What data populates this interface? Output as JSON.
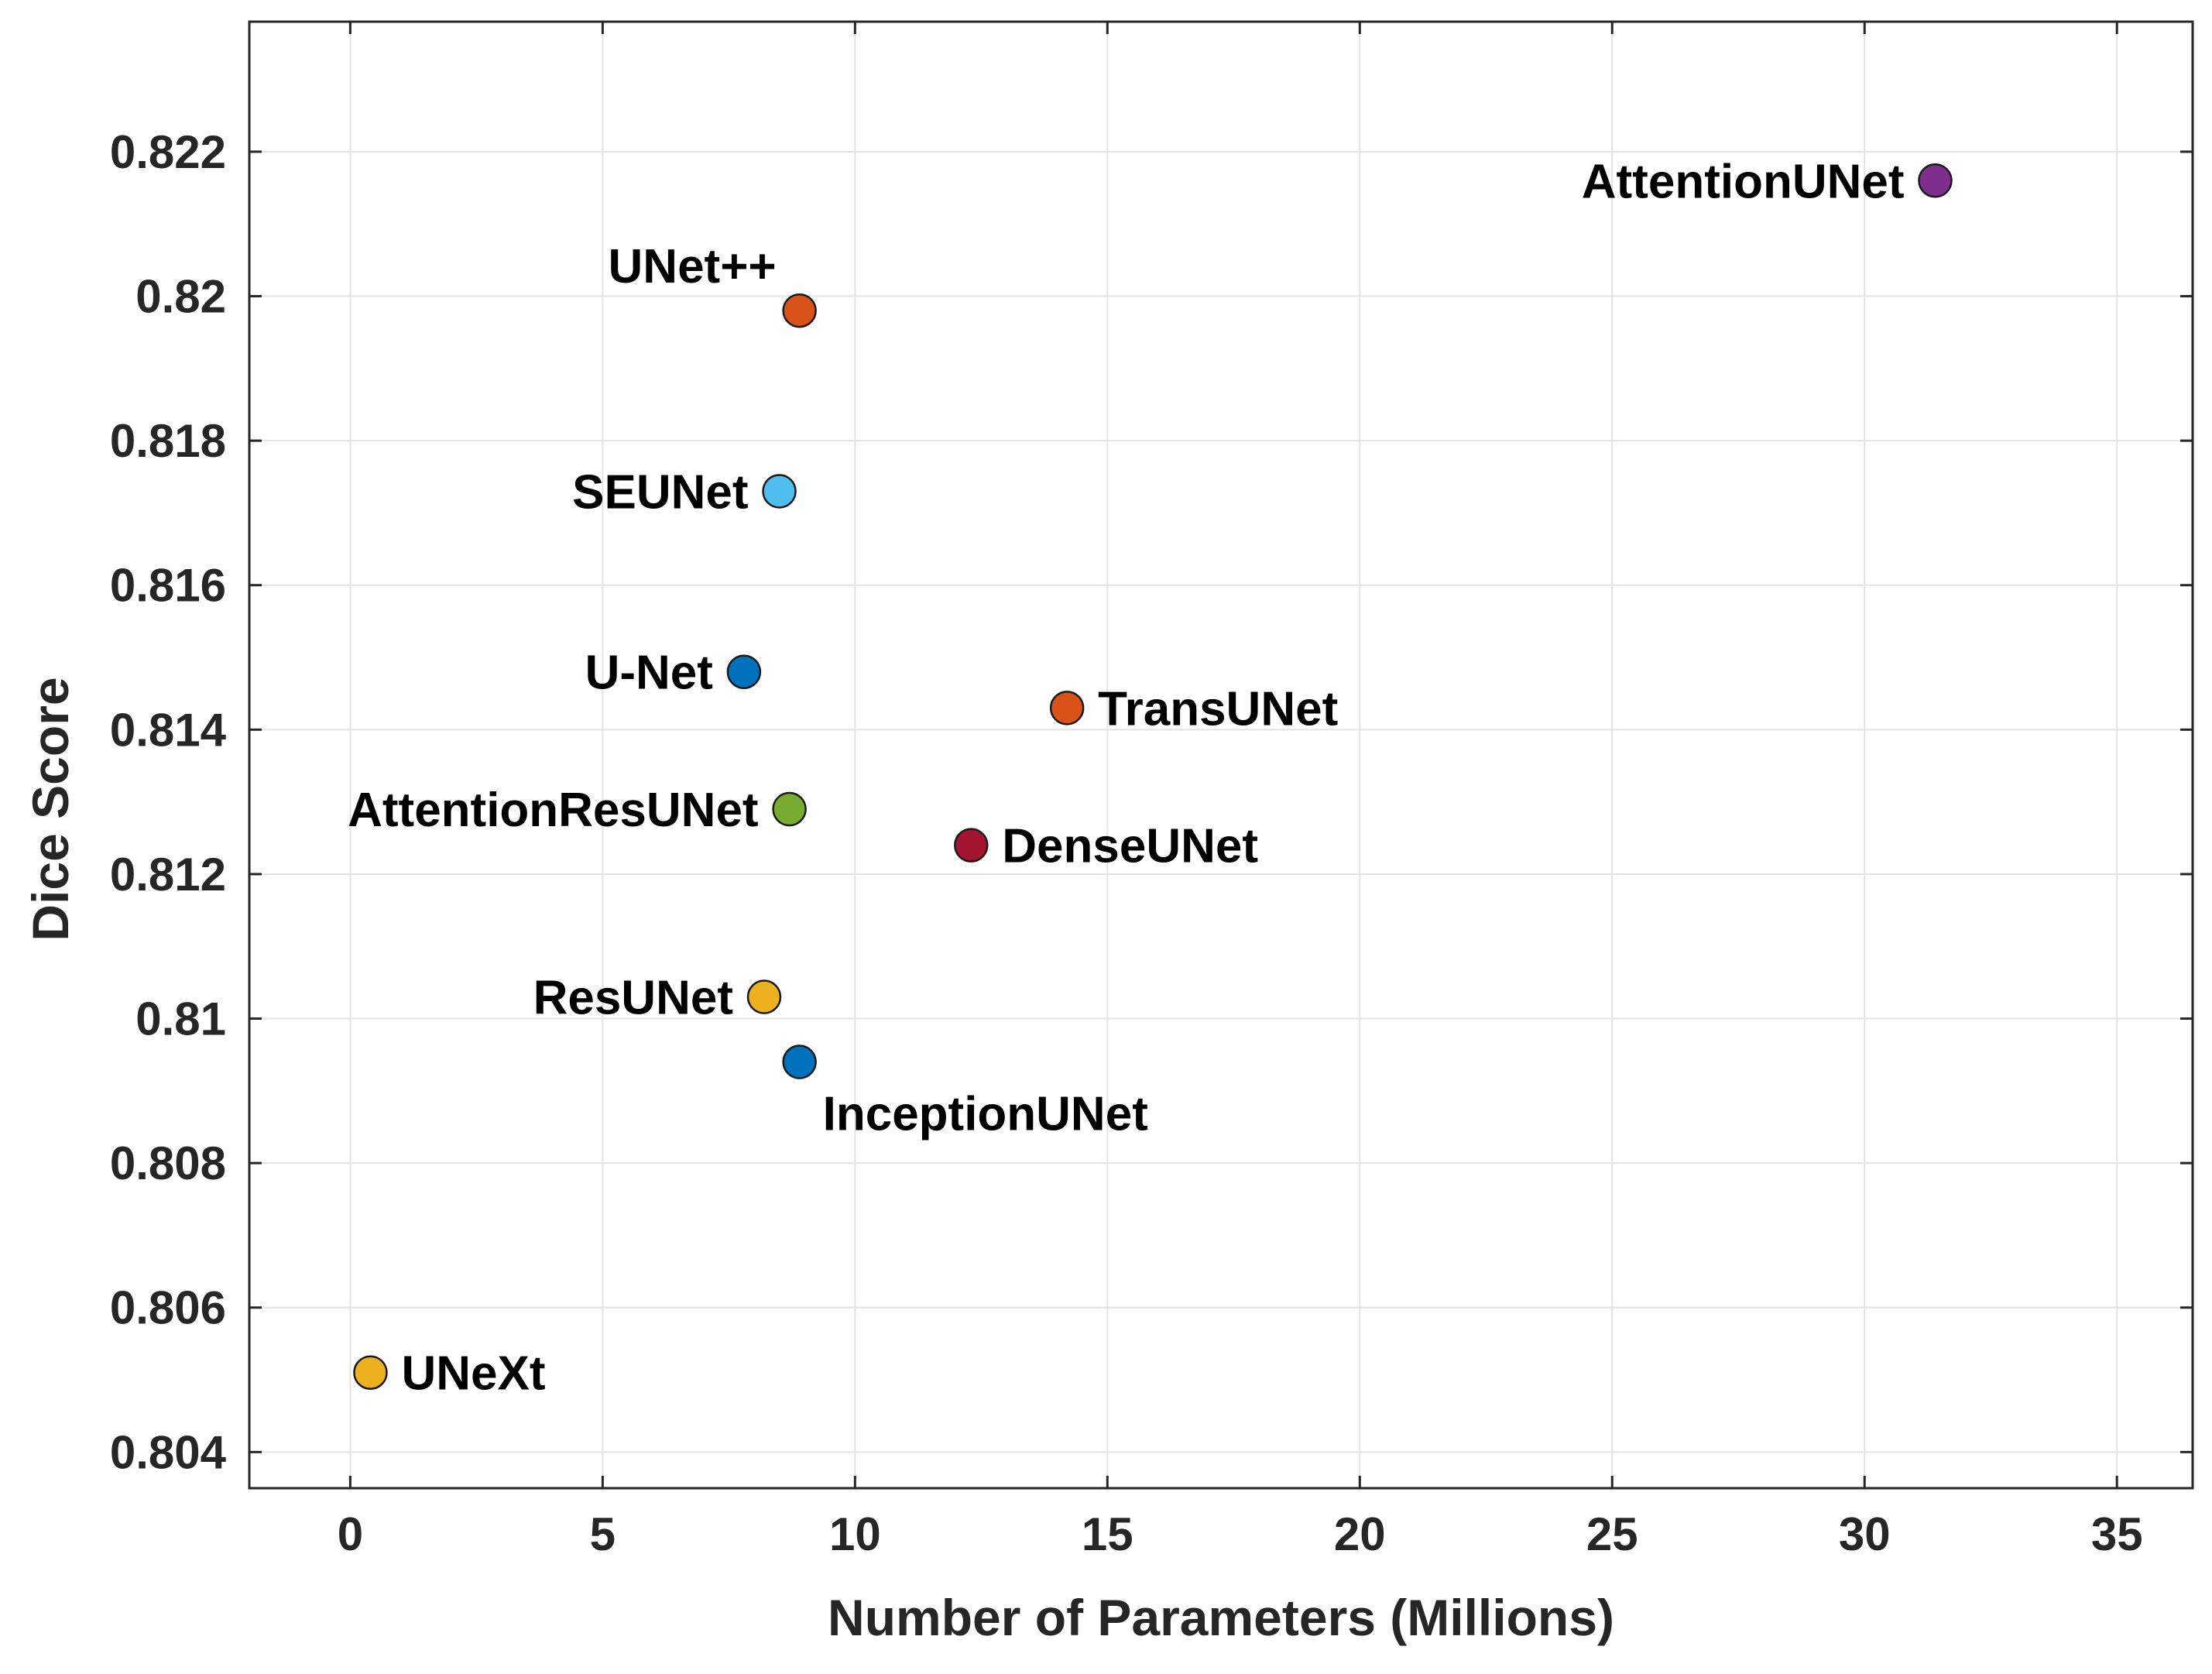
{
  "chart_data": {
    "type": "scatter",
    "title": "",
    "xlabel": "Number of Parameters (Millions)",
    "ylabel": "Dice Score",
    "xlim": [
      -2,
      36.5
    ],
    "ylim": [
      0.8035,
      0.8238
    ],
    "xticks": [
      0,
      5,
      10,
      15,
      20,
      25,
      30,
      35
    ],
    "xtick_labels": [
      "0",
      "5",
      "10",
      "15",
      "20",
      "25",
      "30",
      "35"
    ],
    "yticks": [
      0.804,
      0.806,
      0.808,
      0.81,
      0.812,
      0.814,
      0.816,
      0.818,
      0.82,
      0.822
    ],
    "ytick_labels": [
      "0.804",
      "0.806",
      "0.808",
      "0.81",
      "0.812",
      "0.814",
      "0.816",
      "0.818",
      "0.82",
      "0.822"
    ],
    "grid": true,
    "points": [
      {
        "label": "AttentionUNet",
        "x": 31.4,
        "y": 0.8216,
        "color": "#7E2F8E",
        "label_side": "left"
      },
      {
        "label": "UNet++",
        "x": 8.9,
        "y": 0.8198,
        "color": "#D95319",
        "label_side": "top-left"
      },
      {
        "label": "SEUNet",
        "x": 8.5,
        "y": 0.8173,
        "color": "#4DBEEE",
        "label_side": "left"
      },
      {
        "label": "U-Net",
        "x": 7.8,
        "y": 0.8148,
        "color": "#0072BD",
        "label_side": "left"
      },
      {
        "label": "TransUNet",
        "x": 14.2,
        "y": 0.8143,
        "color": "#D95319",
        "label_side": "right"
      },
      {
        "label": "AttentionResUNet",
        "x": 8.7,
        "y": 0.8129,
        "color": "#77AC30",
        "label_side": "left"
      },
      {
        "label": "DenseUNet",
        "x": 12.3,
        "y": 0.8124,
        "color": "#A2142F",
        "label_side": "right"
      },
      {
        "label": "ResUNet",
        "x": 8.2,
        "y": 0.8103,
        "color": "#EDB120",
        "label_side": "left"
      },
      {
        "label": "InceptionUNet",
        "x": 8.9,
        "y": 0.8094,
        "color": "#0072BD",
        "label_side": "below-right"
      },
      {
        "label": "UNeXt",
        "x": 0.4,
        "y": 0.8051,
        "color": "#EDB120",
        "label_side": "right"
      }
    ]
  }
}
